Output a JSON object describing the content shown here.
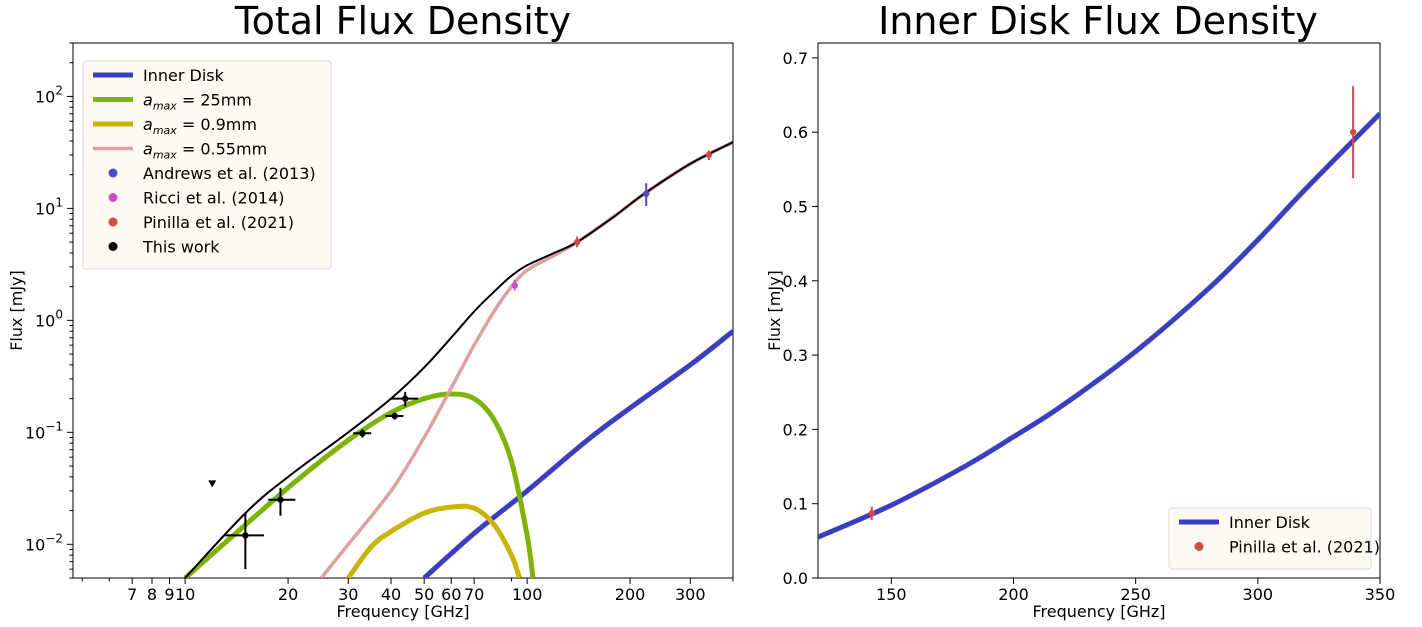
{
  "chart_data": [
    {
      "type": "line",
      "title": "Total Flux Density",
      "xlabel": "Frequency [GHz]",
      "ylabel": "Flux [mJy]",
      "xscale": "log",
      "yscale": "log",
      "xlim": [
        4.7,
        400
      ],
      "ylim": [
        0.005,
        300
      ],
      "xticks": [
        {
          "v": 7,
          "label": "7"
        },
        {
          "v": 8,
          "label": "8"
        },
        {
          "v": 9,
          "label": "9"
        },
        {
          "v": 10,
          "label": "10"
        },
        {
          "v": 20,
          "label": "20"
        },
        {
          "v": 30,
          "label": "30"
        },
        {
          "v": 40,
          "label": "40"
        },
        {
          "v": 50,
          "label": "50"
        },
        {
          "v": 60,
          "label": "60"
        },
        {
          "v": 70,
          "label": "70"
        },
        {
          "v": 100,
          "label": "100"
        },
        {
          "v": 200,
          "label": "200"
        },
        {
          "v": 300,
          "label": "300"
        }
      ],
      "yticks": [
        {
          "v": 0.01,
          "base": "10",
          "exp": "−2"
        },
        {
          "v": 0.1,
          "base": "10",
          "exp": "−1"
        },
        {
          "v": 1,
          "base": "10",
          "exp": "0"
        },
        {
          "v": 10,
          "base": "10",
          "exp": "1"
        },
        {
          "v": 100,
          "base": "10",
          "exp": "2"
        }
      ],
      "legend_position": "upper-left",
      "series": [
        {
          "name": "Inner Disk",
          "color": "#3d3dbf",
          "width": 5,
          "x": [
            50,
            70,
            100,
            150,
            200,
            300,
            400
          ],
          "y": [
            0.005,
            0.0125,
            0.03,
            0.085,
            0.165,
            0.4,
            0.8
          ]
        },
        {
          "name": "a_max = 25mm",
          "math": "max",
          "value": " = 25mm",
          "color": "#7fb20a",
          "width": 5,
          "x": [
            10,
            20,
            30,
            40,
            50,
            60,
            70,
            80,
            90,
            100,
            104
          ],
          "y": [
            0.005,
            0.032,
            0.085,
            0.15,
            0.2,
            0.22,
            0.2,
            0.13,
            0.055,
            0.012,
            0.005
          ]
        },
        {
          "name": "a_max = 0.9mm",
          "math": "max",
          "value": " = 0.9mm",
          "color": "#c8b40a",
          "width": 5,
          "x": [
            30,
            35,
            40,
            50,
            60,
            70,
            80,
            90,
            95
          ],
          "y": [
            0.005,
            0.0095,
            0.013,
            0.019,
            0.0215,
            0.021,
            0.015,
            0.008,
            0.005
          ]
        },
        {
          "name": "a_max = 0.55mm",
          "math": "max",
          "value": " = 0.55mm",
          "color": "#e0a0a0",
          "width": 3.5,
          "x": [
            25,
            30,
            40,
            50,
            60,
            70,
            80,
            90,
            100,
            120,
            140,
            180,
            220,
            300,
            400
          ],
          "y": [
            0.005,
            0.01,
            0.03,
            0.09,
            0.25,
            0.6,
            1.2,
            2.0,
            2.8,
            3.8,
            5.0,
            8.5,
            13.5,
            25,
            39
          ]
        },
        {
          "name": "Total",
          "color": "#000000",
          "width": 2,
          "legend": false,
          "x": [
            10,
            15,
            20,
            30,
            40,
            50,
            60,
            70,
            80,
            90,
            100,
            120,
            140,
            180,
            220,
            300,
            400
          ],
          "y": [
            0.005,
            0.019,
            0.04,
            0.1,
            0.2,
            0.38,
            0.7,
            1.2,
            1.8,
            2.5,
            3.1,
            4.0,
            5.0,
            8.5,
            13.5,
            25,
            39
          ]
        }
      ],
      "points": [
        {
          "name": "Andrews et al. (2013)",
          "color": "#4b4bc8",
          "data": [
            {
              "x": 223,
              "y": 13.5,
              "ylo": 10.5,
              "yhi": 16.8
            }
          ]
        },
        {
          "name": "Ricci et al. (2014)",
          "color": "#c850c8",
          "data": [
            {
              "x": 92,
              "y": 2.05,
              "ylo": 1.85,
              "yhi": 2.3
            }
          ]
        },
        {
          "name": "Pinilla et al. (2021)",
          "color": "#cc4b4b",
          "data": [
            {
              "x": 140,
              "y": 5.0,
              "ylo": 4.5,
              "yhi": 5.6
            },
            {
              "x": 340,
              "y": 30,
              "ylo": 27,
              "yhi": 33
            }
          ]
        },
        {
          "name": "This work",
          "color": "#000000",
          "data": [
            {
              "x": 15,
              "y": 0.012,
              "ylo": 0.006,
              "yhi": 0.019,
              "xlo": 13,
              "xhi": 17
            },
            {
              "x": 19,
              "y": 0.025,
              "ylo": 0.018,
              "yhi": 0.032,
              "xlo": 17.5,
              "xhi": 21
            },
            {
              "x": 33,
              "y": 0.098,
              "ylo": 0.09,
              "yhi": 0.106,
              "xlo": 31,
              "xhi": 35
            },
            {
              "x": 41,
              "y": 0.14,
              "ylo": 0.13,
              "yhi": 0.15,
              "xlo": 38.5,
              "xhi": 43.5
            },
            {
              "x": 44,
              "y": 0.2,
              "ylo": 0.17,
              "yhi": 0.23,
              "xlo": 40,
              "xhi": 48
            }
          ]
        }
      ],
      "upper_limit": {
        "x": 12,
        "y": 0.035,
        "color": "#000000"
      }
    },
    {
      "type": "line",
      "title": "Inner Disk Flux Density",
      "xlabel": "Frequency [GHz]",
      "ylabel": "Flux [mJy]",
      "xscale": "linear",
      "yscale": "linear",
      "xlim": [
        120,
        350
      ],
      "ylim": [
        0,
        0.72
      ],
      "xticks": [
        {
          "v": 150,
          "label": "150"
        },
        {
          "v": 200,
          "label": "200"
        },
        {
          "v": 250,
          "label": "250"
        },
        {
          "v": 300,
          "label": "300"
        },
        {
          "v": 350,
          "label": "350"
        }
      ],
      "yticks": [
        {
          "v": 0,
          "label": "0.0"
        },
        {
          "v": 0.1,
          "label": "0.1"
        },
        {
          "v": 0.2,
          "label": "0.2"
        },
        {
          "v": 0.3,
          "label": "0.3"
        },
        {
          "v": 0.4,
          "label": "0.4"
        },
        {
          "v": 0.5,
          "label": "0.5"
        },
        {
          "v": 0.6,
          "label": "0.6"
        },
        {
          "v": 0.7,
          "label": "0.7"
        }
      ],
      "legend_position": "lower-right",
      "series": [
        {
          "name": "Inner Disk",
          "color": "#3d3dbf",
          "width": 5,
          "x": [
            120,
            150,
            180,
            200,
            220,
            250,
            280,
            300,
            320,
            350
          ],
          "y": [
            0.055,
            0.098,
            0.15,
            0.19,
            0.232,
            0.305,
            0.39,
            0.455,
            0.525,
            0.625
          ]
        }
      ],
      "points": [
        {
          "name": "Pinilla et al. (2021)",
          "color": "#cc4b4b",
          "data": [
            {
              "x": 142,
              "y": 0.087,
              "ylo": 0.078,
              "yhi": 0.096
            },
            {
              "x": 339,
              "y": 0.6,
              "ylo": 0.538,
              "yhi": 0.662
            }
          ]
        }
      ]
    }
  ]
}
